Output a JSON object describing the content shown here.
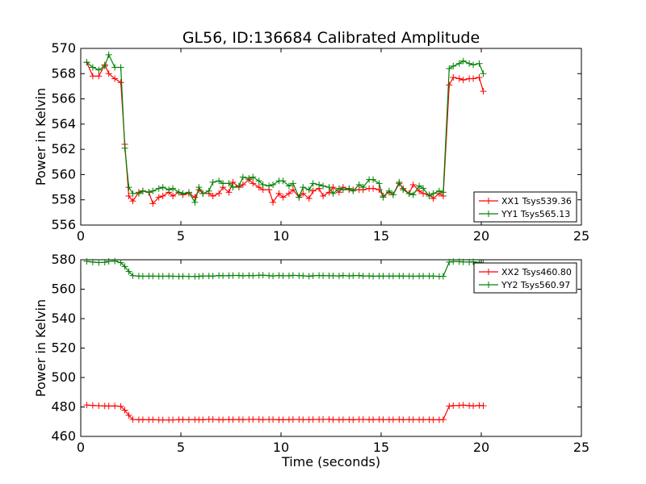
{
  "chart_data": [
    {
      "type": "line",
      "title": "GL56, ID:136684 Calibrated Amplitude",
      "xlabel": "",
      "ylabel": "Power in Kelvin",
      "xlim": [
        0,
        25
      ],
      "ylim": [
        556,
        570
      ],
      "xticks": [
        "0",
        "5",
        "10",
        "15",
        "20",
        "25"
      ],
      "yticks": [
        "556",
        "558",
        "560",
        "562",
        "564",
        "566",
        "568",
        "570"
      ],
      "legend_position": "bottom-right",
      "x": [
        0.3,
        0.6,
        0.9,
        1.2,
        1.4,
        1.7,
        2.0,
        2.2,
        2.4,
        2.6,
        2.9,
        3.1,
        3.4,
        3.6,
        3.9,
        4.1,
        4.4,
        4.6,
        4.9,
        5.1,
        5.4,
        5.7,
        5.9,
        6.1,
        6.4,
        6.6,
        6.9,
        7.1,
        7.4,
        7.6,
        7.9,
        8.1,
        8.4,
        8.6,
        8.9,
        9.1,
        9.4,
        9.6,
        9.9,
        10.1,
        10.4,
        10.6,
        10.9,
        11.1,
        11.4,
        11.6,
        11.9,
        12.1,
        12.4,
        12.6,
        12.9,
        13.1,
        13.4,
        13.6,
        13.9,
        14.1,
        14.4,
        14.6,
        14.9,
        15.1,
        15.4,
        15.6,
        15.9,
        16.1,
        16.4,
        16.6,
        16.9,
        17.1,
        17.4,
        17.6,
        17.9,
        18.1,
        18.4,
        18.6,
        18.9,
        19.1,
        19.4,
        19.6,
        19.9,
        20.1
      ],
      "series": [
        {
          "name": "XX1 Tsys539.36",
          "color": "#ff0000",
          "values": [
            568.9,
            567.8,
            567.8,
            568.7,
            568.0,
            567.6,
            567.3,
            562.4,
            558.3,
            557.9,
            558.6,
            558.7,
            558.6,
            557.7,
            558.2,
            558.3,
            558.6,
            558.3,
            558.6,
            558.4,
            558.5,
            558.2,
            558.8,
            558.5,
            558.5,
            558.3,
            558.5,
            559.0,
            558.6,
            559.4,
            559.0,
            559.2,
            559.6,
            559.3,
            559.0,
            558.8,
            558.8,
            557.8,
            558.5,
            558.2,
            558.5,
            558.8,
            558.2,
            558.5,
            558.1,
            558.7,
            558.9,
            558.3,
            558.6,
            559.0,
            558.6,
            559.0,
            558.8,
            558.8,
            558.8,
            558.8,
            558.9,
            558.9,
            558.8,
            558.3,
            558.6,
            558.4,
            559.3,
            558.9,
            558.5,
            559.2,
            558.7,
            558.5,
            558.4,
            558.1,
            558.5,
            558.3,
            567.1,
            567.7,
            567.6,
            567.5,
            567.6,
            567.6,
            567.7,
            566.6
          ]
        },
        {
          "name": "YY1 Tsys565.13",
          "color": "#008000",
          "values": [
            568.9,
            568.5,
            568.3,
            568.6,
            569.5,
            568.5,
            568.5,
            562.1,
            559.0,
            558.5,
            558.5,
            558.7,
            558.6,
            558.7,
            558.9,
            559.0,
            558.8,
            558.9,
            558.6,
            558.5,
            558.6,
            557.8,
            559.0,
            558.5,
            558.7,
            559.4,
            559.5,
            559.3,
            559.3,
            559.0,
            559.1,
            559.8,
            559.7,
            559.8,
            559.5,
            559.2,
            559.1,
            559.2,
            559.5,
            559.5,
            559.1,
            559.3,
            558.2,
            559.0,
            558.8,
            559.3,
            559.2,
            559.1,
            559.0,
            558.5,
            558.9,
            558.8,
            558.9,
            558.7,
            559.2,
            559.0,
            559.6,
            559.6,
            559.3,
            558.2,
            558.7,
            558.4,
            559.4,
            558.8,
            558.5,
            558.4,
            559.1,
            558.9,
            558.3,
            558.5,
            558.7,
            558.6,
            568.4,
            568.6,
            568.8,
            569.0,
            568.8,
            568.7,
            568.8,
            568.0
          ]
        }
      ]
    },
    {
      "type": "line",
      "title": "",
      "xlabel": "Time (seconds)",
      "ylabel": "Power in Kelvin",
      "xlim": [
        0,
        25
      ],
      "ylim": [
        460,
        580
      ],
      "xticks": [
        "0",
        "5",
        "10",
        "15",
        "20",
        "25"
      ],
      "yticks": [
        "460",
        "480",
        "500",
        "520",
        "540",
        "560",
        "580"
      ],
      "legend_position": "top-right",
      "x": [
        0.3,
        0.6,
        0.9,
        1.2,
        1.4,
        1.7,
        2.0,
        2.2,
        2.4,
        2.6,
        2.9,
        3.1,
        3.4,
        3.6,
        3.9,
        4.1,
        4.4,
        4.6,
        4.9,
        5.1,
        5.4,
        5.7,
        5.9,
        6.1,
        6.4,
        6.6,
        6.9,
        7.1,
        7.4,
        7.6,
        7.9,
        8.1,
        8.4,
        8.6,
        8.9,
        9.1,
        9.4,
        9.6,
        9.9,
        10.1,
        10.4,
        10.6,
        10.9,
        11.1,
        11.4,
        11.6,
        11.9,
        12.1,
        12.4,
        12.6,
        12.9,
        13.1,
        13.4,
        13.6,
        13.9,
        14.1,
        14.4,
        14.6,
        14.9,
        15.1,
        15.4,
        15.6,
        15.9,
        16.1,
        16.4,
        16.6,
        16.9,
        17.1,
        17.4,
        17.6,
        17.9,
        18.1,
        18.4,
        18.6,
        18.9,
        19.1,
        19.4,
        19.6,
        19.9,
        20.1
      ],
      "series": [
        {
          "name": "XX2 Tsys460.80",
          "color": "#ff0000",
          "values": [
            481.3,
            481.0,
            480.8,
            480.7,
            480.6,
            480.7,
            480.4,
            477.8,
            474.3,
            471.5,
            471.3,
            471.4,
            471.3,
            471.4,
            471.2,
            471.2,
            471.2,
            471.2,
            471.4,
            471.4,
            471.3,
            471.4,
            471.3,
            471.3,
            471.6,
            471.5,
            471.3,
            471.3,
            471.5,
            471.4,
            471.5,
            471.4,
            471.5,
            471.6,
            471.5,
            471.4,
            471.5,
            471.5,
            471.3,
            471.3,
            471.4,
            471.5,
            471.5,
            471.4,
            471.4,
            471.5,
            471.5,
            471.5,
            471.6,
            471.4,
            471.3,
            471.4,
            471.4,
            471.3,
            471.5,
            471.5,
            471.4,
            471.4,
            471.5,
            471.4,
            471.4,
            471.4,
            471.5,
            471.4,
            471.5,
            471.4,
            471.4,
            471.4,
            471.4,
            471.3,
            471.3,
            471.4,
            480.6,
            480.9,
            481.0,
            481.2,
            480.9,
            480.7,
            481.0,
            480.8
          ]
        },
        {
          "name": "YY2 Tsys560.97",
          "color": "#008000",
          "values": [
            578.9,
            578.4,
            578.1,
            578.3,
            578.9,
            579.1,
            578.0,
            575.4,
            572.0,
            569.2,
            568.9,
            568.8,
            568.9,
            568.9,
            568.8,
            568.8,
            568.9,
            568.8,
            568.7,
            568.8,
            568.7,
            568.7,
            568.7,
            569.0,
            569.0,
            568.9,
            569.3,
            569.1,
            569.2,
            569.3,
            569.3,
            569.1,
            569.3,
            569.2,
            569.4,
            569.5,
            569.2,
            569.0,
            569.3,
            569.1,
            569.1,
            569.4,
            569.2,
            569.1,
            568.8,
            569.1,
            569.3,
            569.2,
            569.1,
            569.1,
            569.0,
            569.3,
            569.0,
            569.2,
            569.3,
            569.0,
            569.0,
            568.8,
            568.9,
            568.9,
            568.9,
            568.9,
            569.0,
            568.9,
            568.9,
            568.8,
            568.9,
            568.9,
            568.9,
            568.9,
            568.7,
            568.8,
            578.4,
            578.8,
            578.7,
            578.5,
            578.4,
            578.6,
            578.2,
            577.7
          ]
        }
      ]
    }
  ]
}
